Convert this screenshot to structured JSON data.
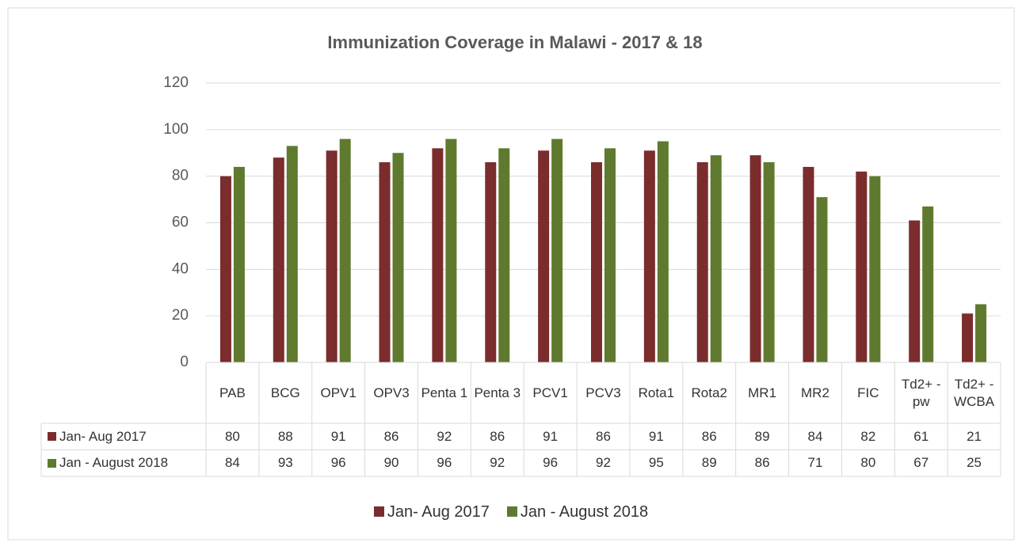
{
  "chart_data": {
    "type": "bar",
    "title": "Immunization Coverage in Malawi - 2017 & 18",
    "categories": [
      "PAB",
      "BCG",
      "OPV1",
      "OPV3",
      "Penta 1",
      "Penta 3",
      "PCV1",
      "PCV3",
      "Rota1",
      "Rota2",
      "MR1",
      "MR2",
      "FIC",
      "Td2+ - pw",
      "Td2+ - WCBA"
    ],
    "series": [
      {
        "name": "Jan- Aug 2017",
        "color": "#7b2c2c",
        "values": [
          80,
          88,
          91,
          86,
          92,
          86,
          91,
          86,
          91,
          86,
          89,
          84,
          82,
          61,
          21
        ]
      },
      {
        "name": "Jan - August 2018",
        "color": "#5f7a2e",
        "values": [
          84,
          93,
          96,
          90,
          96,
          92,
          96,
          92,
          95,
          89,
          86,
          71,
          80,
          67,
          25
        ]
      }
    ],
    "ylim": [
      0,
      120
    ],
    "yticks": [
      0,
      20,
      40,
      60,
      80,
      100,
      120
    ],
    "grid": true,
    "legend": "bottom",
    "data_table": true
  }
}
